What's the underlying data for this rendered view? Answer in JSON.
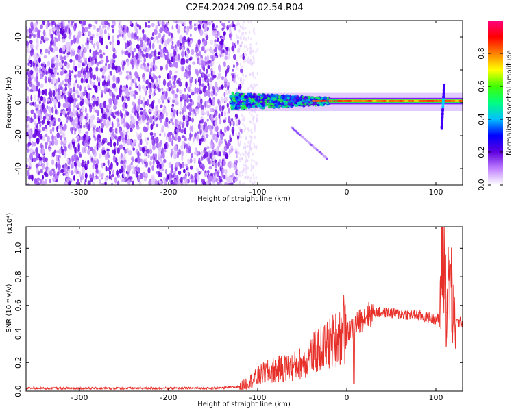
{
  "title": "C2E4.2024.209.02.54.R04",
  "chart_data": [
    {
      "type": "heatmap",
      "xlabel": "Height of straight line (km)",
      "ylabel": "Frequency (Hz)",
      "xlim": [
        -360,
        130
      ],
      "ylim": [
        -50,
        50
      ],
      "xticks": [
        -300,
        -200,
        -100,
        0,
        100
      ],
      "yticks": [
        -40,
        -20,
        0,
        20,
        40
      ],
      "colorbar": {
        "label": "Normalized spectral amplitude",
        "range": [
          0.0,
          1.0
        ],
        "ticks": [
          "0.0",
          "0.2",
          "0.4",
          "0.6",
          "0.8"
        ],
        "colormap": [
          "#ffffff",
          "#c080ff",
          "#6000e0",
          "#0000ff",
          "#00c0ff",
          "#00ff80",
          "#40ff00",
          "#ffff00",
          "#ff8000",
          "#ff0000",
          "#ff0080"
        ]
      },
      "features": {
        "noise_region_x": [
          -360,
          -115
        ],
        "signal_band_x": [
          -130,
          130
        ],
        "signal_band_y": [
          -2,
          4
        ],
        "chirp_segment": {
          "x": [
            -62,
            -22
          ],
          "y": [
            -15,
            -34
          ]
        },
        "spike_x": 108,
        "spike_y": [
          -16,
          12
        ]
      }
    },
    {
      "type": "line",
      "xlabel": "Height of straight line (km)",
      "ylabel": "SNR (10 * v/v)",
      "y_scale_label": "(x10⁴)",
      "xlim": [
        -360,
        130
      ],
      "ylim": [
        0,
        1.15
      ],
      "xticks": [
        -300,
        -200,
        -100,
        0,
        100
      ],
      "yticks": [
        "0.0",
        "0.2",
        "0.4",
        "0.6",
        "0.8",
        "1.0"
      ],
      "series": [
        {
          "color": "#e8302a",
          "x": [
            -360,
            -300,
            -200,
            -150,
            -120,
            -105,
            -95,
            -80,
            -60,
            -45,
            -30,
            -20,
            -10,
            0,
            10,
            20,
            30,
            40,
            60,
            80,
            95,
            104,
            108,
            112,
            116,
            120,
            130
          ],
          "y": [
            0.02,
            0.02,
            0.02,
            0.02,
            0.03,
            0.08,
            0.12,
            0.15,
            0.17,
            0.22,
            0.3,
            0.33,
            0.38,
            0.4,
            0.47,
            0.52,
            0.55,
            0.55,
            0.54,
            0.53,
            0.51,
            0.5,
            1.15,
            0.55,
            0.82,
            0.48,
            0.48
          ]
        }
      ]
    }
  ]
}
